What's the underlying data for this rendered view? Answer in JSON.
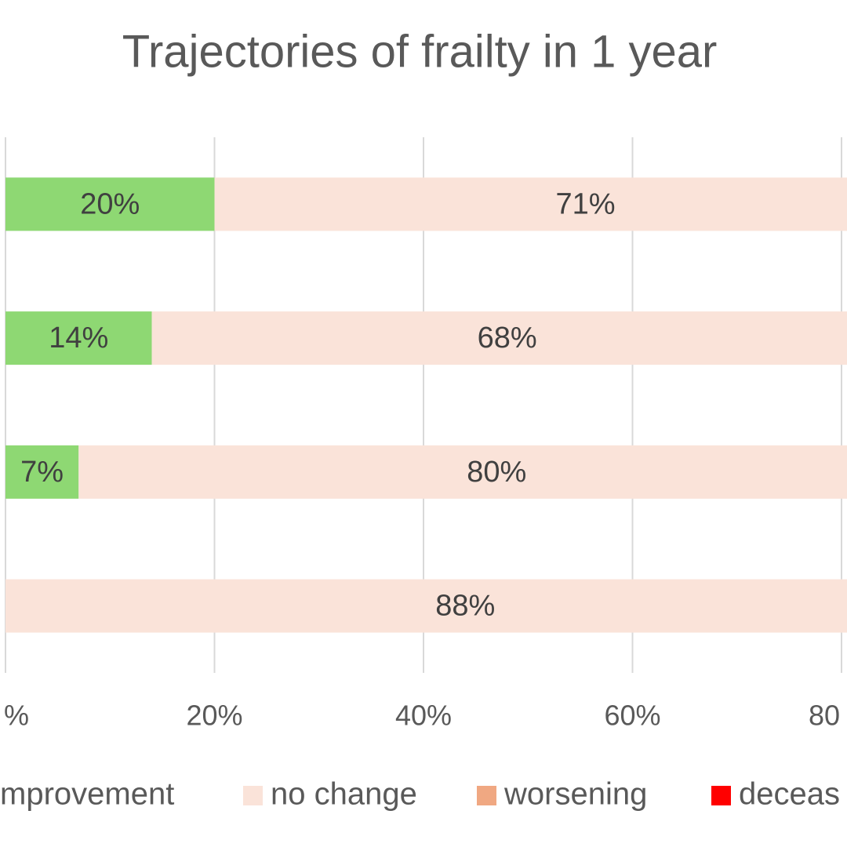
{
  "chart_data": {
    "type": "stacked-barh",
    "title": "Trajectories of frailty in 1 year",
    "categories": [
      null,
      null,
      null,
      null
    ],
    "series": [
      {
        "name": "mprovement",
        "color": "#8ed873",
        "values": [
          20,
          14,
          7,
          0
        ],
        "value_labels": [
          "20%",
          "14%",
          "7%",
          null
        ]
      },
      {
        "name": "no change",
        "color": "#fae3d9",
        "values": [
          71,
          68,
          80,
          88
        ],
        "value_labels": [
          "71%",
          "68%",
          "80%",
          "88%"
        ]
      },
      {
        "name": "worsening",
        "color": "#f0a882",
        "values": [
          null,
          null,
          null,
          null
        ]
      },
      {
        "name": "deceas",
        "color": "#ff0000",
        "values": [
          null,
          null,
          null,
          null
        ]
      }
    ],
    "xlim": [
      0,
      80
    ],
    "xticks": [
      {
        "value": 0,
        "label": "%"
      },
      {
        "value": 20,
        "label": "20%"
      },
      {
        "value": 40,
        "label": "40%"
      },
      {
        "value": 60,
        "label": "60%"
      },
      {
        "value": 80,
        "label": "80"
      }
    ],
    "grid": true,
    "legend": "bottom"
  }
}
